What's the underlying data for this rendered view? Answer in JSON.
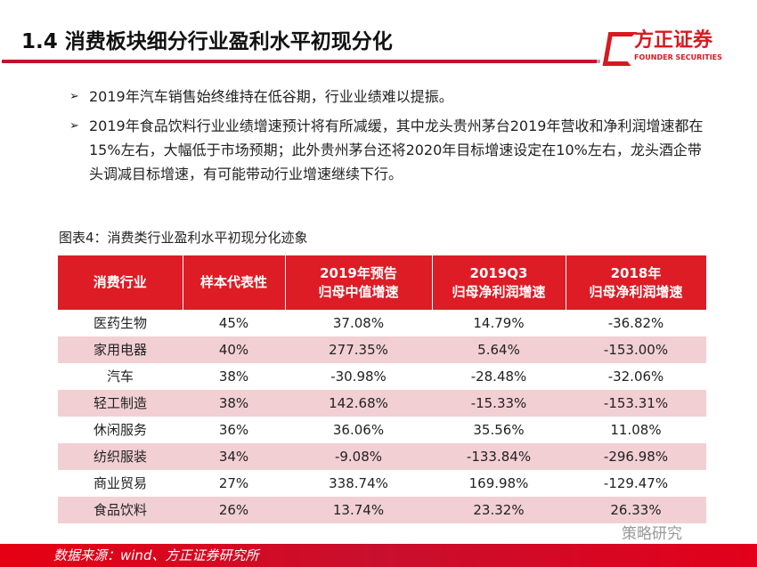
{
  "title": "1.4 消费板块细分行业盈利水平初现分化",
  "logo": {
    "cn": "方正证券",
    "en": "FOUNDER SECURITIES"
  },
  "bullets": [
    "2019年汽车销售始终维持在低谷期，行业业绩难以提振。",
    "2019年食品饮料行业业绩增速预计将有所减缓，其中龙头贵州茅台2019年营收和净利润增速都在15%左右，大幅低于市场预期；此外贵州茅台还将2020年目标增速设定在10%左右，龙头酒企带头调减目标增速，有可能带动行业增速继续下行。"
  ],
  "caption": "图表4：消费类行业盈利水平初现分化迹象",
  "table": {
    "headers": [
      [
        "消费行业",
        ""
      ],
      [
        "样本代表性",
        ""
      ],
      [
        "2019年预告",
        "归母中值增速"
      ],
      [
        "2019Q3",
        "归母净利润增速"
      ],
      [
        "2018年",
        "归母净利润增速"
      ]
    ],
    "rows": [
      [
        "医药生物",
        "45%",
        "37.08%",
        "14.79%",
        "-36.82%"
      ],
      [
        "家用电器",
        "40%",
        "277.35%",
        "5.64%",
        "-153.00%"
      ],
      [
        "汽车",
        "38%",
        "-30.98%",
        "-28.48%",
        "-32.06%"
      ],
      [
        "轻工制造",
        "38%",
        "142.68%",
        "-15.33%",
        "-153.31%"
      ],
      [
        "休闲服务",
        "36%",
        "36.06%",
        "35.56%",
        "11.08%"
      ],
      [
        "纺织服装",
        "34%",
        "-9.08%",
        "-133.84%",
        "-296.98%"
      ],
      [
        "商业贸易",
        "27%",
        "338.74%",
        "169.98%",
        "-129.47%"
      ],
      [
        "食品饮料",
        "26%",
        "13.74%",
        "23.32%",
        "26.33%"
      ]
    ]
  },
  "source": "数据来源：wind、方正证券研究所",
  "watermark": "策略研究"
}
